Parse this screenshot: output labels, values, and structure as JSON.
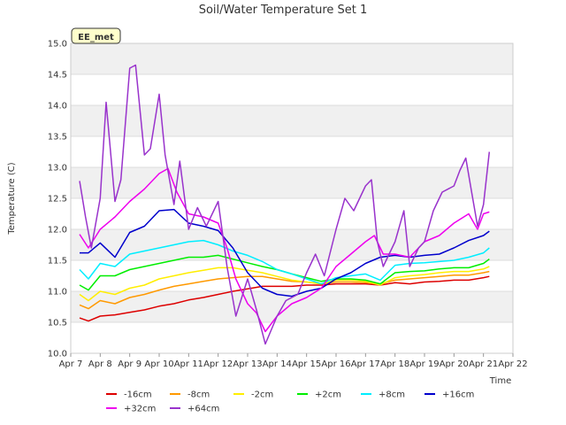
{
  "chart_data": {
    "type": "line",
    "title": "Soil/Water Temperature Set 1",
    "xlabel": "Time",
    "ylabel": "Temperature (C)",
    "badge": "EE_met",
    "ylim": [
      10.0,
      15.0
    ],
    "xlim": [
      "Apr 7",
      "Apr 22"
    ],
    "y_ticks": [
      "10.0",
      "10.5",
      "11.0",
      "11.5",
      "12.0",
      "12.5",
      "13.0",
      "13.5",
      "14.0",
      "14.5",
      "15.0"
    ],
    "x_ticks": [
      "Apr 7",
      "Apr 8",
      "Apr 9",
      "Apr 10",
      "Apr 11",
      "Apr 12",
      "Apr 13",
      "Apr 14",
      "Apr 15",
      "Apr 16",
      "Apr 17",
      "Apr 18",
      "Apr 19",
      "Apr 20",
      "Apr 21",
      "Apr 22"
    ],
    "grid": "horizontal bands",
    "legend_position": "bottom",
    "series": [
      {
        "name": "-16cm",
        "color": "#dd0000",
        "x": [
          7.3,
          7.6,
          8.0,
          8.5,
          9.0,
          9.5,
          10.0,
          10.5,
          11.0,
          11.5,
          12.0,
          12.5,
          13.0,
          13.5,
          14.0,
          14.5,
          15.0,
          15.5,
          16.0,
          16.5,
          17.0,
          17.5,
          18.0,
          18.5,
          19.0,
          19.5,
          20.0,
          20.5,
          21.0,
          21.2
        ],
        "y": [
          10.57,
          10.52,
          10.6,
          10.62,
          10.66,
          10.7,
          10.76,
          10.8,
          10.86,
          10.9,
          10.95,
          11.0,
          11.04,
          11.08,
          11.08,
          11.08,
          11.1,
          11.1,
          11.12,
          11.12,
          11.12,
          11.1,
          11.14,
          11.12,
          11.15,
          11.16,
          11.18,
          11.18,
          11.22,
          11.24
        ]
      },
      {
        "name": "-8cm",
        "color": "#ff9900",
        "x": [
          7.3,
          7.6,
          8.0,
          8.5,
          9.0,
          9.5,
          10.0,
          10.5,
          11.0,
          11.5,
          12.0,
          12.5,
          13.0,
          13.5,
          14.0,
          14.5,
          15.0,
          15.5,
          16.0,
          16.5,
          17.0,
          17.5,
          18.0,
          18.5,
          19.0,
          19.5,
          20.0,
          20.5,
          21.0,
          21.2
        ],
        "y": [
          10.78,
          10.72,
          10.85,
          10.8,
          10.9,
          10.95,
          11.02,
          11.08,
          11.12,
          11.16,
          11.2,
          11.22,
          11.24,
          11.24,
          11.2,
          11.16,
          11.15,
          11.12,
          11.15,
          11.15,
          11.14,
          11.12,
          11.18,
          11.2,
          11.22,
          11.24,
          11.26,
          11.26,
          11.3,
          11.32
        ]
      },
      {
        "name": "-2cm",
        "color": "#ffee00",
        "x": [
          7.3,
          7.6,
          8.0,
          8.5,
          9.0,
          9.5,
          10.0,
          10.5,
          11.0,
          11.5,
          12.0,
          12.5,
          13.0,
          13.5,
          14.0,
          14.5,
          15.0,
          15.5,
          16.0,
          16.5,
          17.0,
          17.5,
          18.0,
          18.5,
          19.0,
          19.5,
          20.0,
          20.5,
          21.0,
          21.2
        ],
        "y": [
          10.95,
          10.85,
          11.0,
          10.95,
          11.05,
          11.1,
          11.2,
          11.25,
          11.3,
          11.34,
          11.38,
          11.38,
          11.34,
          11.3,
          11.24,
          11.18,
          11.15,
          11.12,
          11.18,
          11.18,
          11.16,
          11.1,
          11.22,
          11.25,
          11.27,
          11.3,
          11.32,
          11.32,
          11.36,
          11.4
        ]
      },
      {
        "name": "+2cm",
        "color": "#00ee00",
        "x": [
          7.3,
          7.6,
          8.0,
          8.5,
          9.0,
          9.5,
          10.0,
          10.5,
          11.0,
          11.5,
          12.0,
          12.5,
          13.0,
          13.5,
          14.0,
          14.5,
          15.0,
          15.5,
          16.0,
          16.5,
          17.0,
          17.5,
          18.0,
          18.5,
          19.0,
          19.5,
          20.0,
          20.5,
          21.0,
          21.2
        ],
        "y": [
          11.1,
          11.02,
          11.25,
          11.25,
          11.35,
          11.4,
          11.45,
          11.5,
          11.55,
          11.55,
          11.58,
          11.52,
          11.46,
          11.4,
          11.35,
          11.28,
          11.22,
          11.16,
          11.2,
          11.2,
          11.18,
          11.12,
          11.3,
          11.32,
          11.33,
          11.36,
          11.38,
          11.38,
          11.45,
          11.52
        ]
      },
      {
        "name": "+8cm",
        "color": "#00eeff",
        "x": [
          7.3,
          7.6,
          8.0,
          8.5,
          9.0,
          9.5,
          10.0,
          10.5,
          11.0,
          11.5,
          12.0,
          12.5,
          13.0,
          13.5,
          14.0,
          14.5,
          15.0,
          15.5,
          16.0,
          16.5,
          17.0,
          17.5,
          18.0,
          18.5,
          19.0,
          19.5,
          20.0,
          20.5,
          21.0,
          21.2
        ],
        "y": [
          11.35,
          11.2,
          11.45,
          11.4,
          11.6,
          11.65,
          11.7,
          11.75,
          11.8,
          11.82,
          11.75,
          11.65,
          11.58,
          11.48,
          11.35,
          11.28,
          11.2,
          11.12,
          11.22,
          11.25,
          11.28,
          11.18,
          11.42,
          11.45,
          11.46,
          11.48,
          11.5,
          11.55,
          11.62,
          11.7
        ]
      },
      {
        "name": "+16cm",
        "color": "#0000cc",
        "x": [
          7.3,
          7.6,
          8.0,
          8.5,
          9.0,
          9.5,
          10.0,
          10.5,
          11.0,
          11.5,
          12.0,
          12.5,
          13.0,
          13.5,
          14.0,
          14.5,
          15.0,
          15.5,
          16.0,
          16.5,
          17.0,
          17.5,
          18.0,
          18.5,
          19.0,
          19.5,
          20.0,
          20.5,
          21.0,
          21.2
        ],
        "y": [
          11.62,
          11.62,
          11.78,
          11.55,
          11.95,
          12.05,
          12.3,
          12.32,
          12.1,
          12.05,
          11.98,
          11.7,
          11.3,
          11.05,
          10.95,
          10.92,
          11.0,
          11.05,
          11.2,
          11.3,
          11.45,
          11.55,
          11.58,
          11.55,
          11.58,
          11.6,
          11.7,
          11.82,
          11.9,
          11.97
        ]
      },
      {
        "name": "+32cm",
        "color": "#ee00ee",
        "x": [
          7.3,
          7.6,
          8.0,
          8.5,
          9.0,
          9.5,
          10.0,
          10.3,
          10.6,
          11.0,
          11.5,
          12.0,
          12.3,
          12.6,
          13.0,
          13.3,
          13.6,
          14.0,
          14.5,
          15.0,
          15.5,
          16.0,
          16.5,
          17.0,
          17.3,
          17.6,
          18.0,
          18.5,
          19.0,
          19.5,
          20.0,
          20.5,
          20.8,
          21.0,
          21.2
        ],
        "y": [
          11.92,
          11.7,
          12.0,
          12.2,
          12.45,
          12.65,
          12.9,
          12.98,
          12.6,
          12.25,
          12.2,
          12.1,
          11.7,
          11.2,
          10.8,
          10.65,
          10.35,
          10.6,
          10.8,
          10.9,
          11.05,
          11.4,
          11.6,
          11.8,
          11.9,
          11.6,
          11.6,
          11.55,
          11.8,
          11.9,
          12.1,
          12.25,
          12.0,
          12.25,
          12.28
        ]
      },
      {
        "name": "+64cm",
        "color": "#9933cc",
        "x": [
          7.3,
          7.5,
          7.7,
          8.0,
          8.2,
          8.5,
          8.7,
          9.0,
          9.2,
          9.5,
          9.7,
          10.0,
          10.2,
          10.5,
          10.7,
          11.0,
          11.3,
          11.6,
          12.0,
          12.3,
          12.6,
          13.0,
          13.3,
          13.6,
          14.0,
          14.3,
          14.7,
          15.0,
          15.3,
          15.6,
          16.0,
          16.3,
          16.6,
          17.0,
          17.2,
          17.4,
          17.6,
          17.8,
          18.0,
          18.3,
          18.5,
          18.8,
          19.0,
          19.3,
          19.6,
          20.0,
          20.2,
          20.4,
          20.6,
          20.8,
          21.0,
          21.2
        ],
        "y": [
          12.78,
          12.2,
          11.7,
          12.5,
          14.05,
          12.45,
          12.8,
          14.6,
          14.65,
          13.2,
          13.3,
          14.18,
          13.2,
          12.4,
          13.1,
          12.0,
          12.35,
          12.05,
          12.45,
          11.4,
          10.6,
          11.2,
          10.7,
          10.15,
          10.6,
          10.85,
          10.95,
          11.3,
          11.6,
          11.25,
          12.0,
          12.5,
          12.3,
          12.7,
          12.8,
          11.8,
          11.4,
          11.6,
          11.8,
          12.3,
          11.4,
          11.7,
          11.8,
          12.3,
          12.6,
          12.7,
          12.95,
          13.15,
          12.6,
          12.05,
          12.4,
          13.25
        ]
      }
    ]
  }
}
